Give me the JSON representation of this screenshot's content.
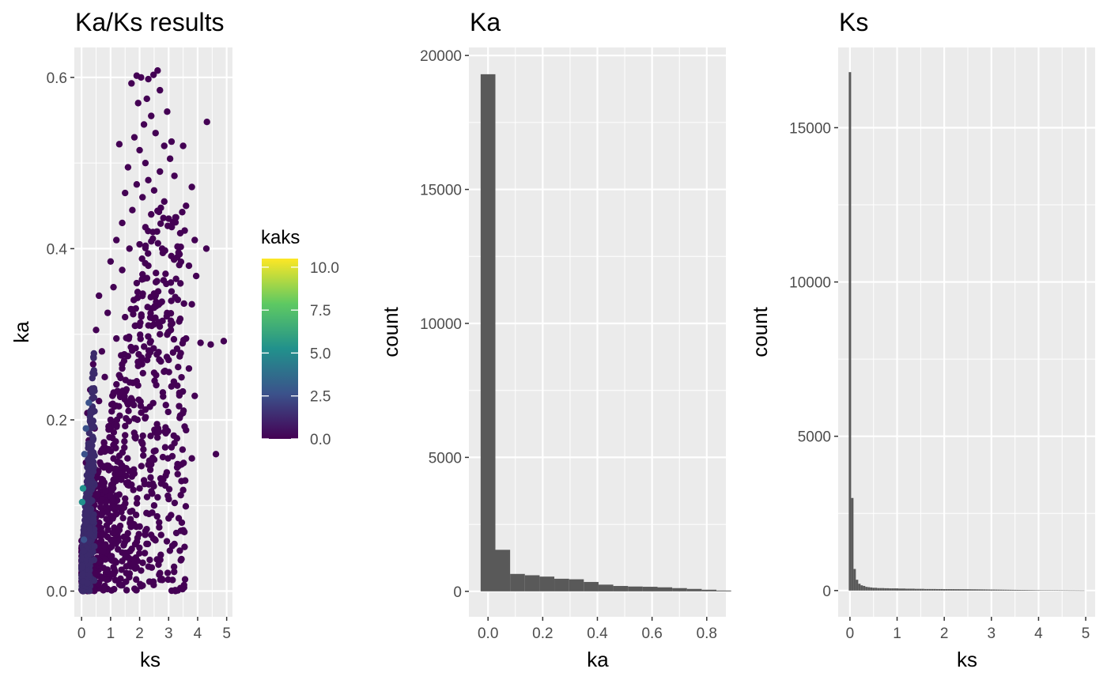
{
  "chart_data": [
    {
      "type": "scatter",
      "title": "Ka/Ks results",
      "xlabel": "ks",
      "ylabel": "ka",
      "xlim": [
        -0.25,
        5.2
      ],
      "ylim": [
        -0.03,
        0.635
      ],
      "x_ticks": [
        0,
        1,
        2,
        3,
        4,
        5
      ],
      "y_ticks": [
        0.0,
        0.2,
        0.4,
        0.6
      ],
      "y_tick_labels": [
        "0.0",
        "0.2",
        "0.4",
        "0.6"
      ],
      "grid": true,
      "color_by": "kaks",
      "legend": {
        "title": "kaks",
        "type": "colorbar",
        "palette": "viridis",
        "range": [
          0,
          10.5
        ],
        "ticks": [
          0.0,
          2.5,
          5.0,
          7.5,
          10.0
        ],
        "tick_labels": [
          "0.0",
          "2.5",
          "5.0",
          "7.5",
          "10.0"
        ],
        "colors": [
          "#440154",
          "#3b528b",
          "#21918c",
          "#5ec962",
          "#fde725"
        ]
      },
      "points": [
        [
          2.62,
          0.608
        ],
        [
          2.48,
          0.603
        ],
        [
          2.05,
          0.6
        ],
        [
          1.9,
          0.602
        ],
        [
          2.3,
          0.598
        ],
        [
          1.72,
          0.593
        ],
        [
          2.7,
          0.585
        ],
        [
          2.25,
          0.575
        ],
        [
          1.95,
          0.57
        ],
        [
          2.95,
          0.56
        ],
        [
          2.4,
          0.555
        ],
        [
          4.32,
          0.548
        ],
        [
          2.15,
          0.545
        ],
        [
          2.55,
          0.535
        ],
        [
          1.82,
          0.53
        ],
        [
          3.1,
          0.525
        ],
        [
          1.3,
          0.522
        ],
        [
          2.85,
          0.52
        ],
        [
          3.5,
          0.52
        ],
        [
          2.0,
          0.515
        ],
        [
          3.05,
          0.505
        ],
        [
          2.2,
          0.5
        ],
        [
          1.6,
          0.495
        ],
        [
          2.7,
          0.49
        ],
        [
          3.2,
          0.485
        ],
        [
          2.3,
          0.48
        ],
        [
          1.9,
          0.475
        ],
        [
          3.8,
          0.472
        ],
        [
          2.5,
          0.468
        ],
        [
          1.5,
          0.465
        ],
        [
          2.1,
          0.46
        ],
        [
          2.85,
          0.455
        ],
        [
          3.6,
          0.45
        ],
        [
          1.75,
          0.445
        ],
        [
          2.4,
          0.44
        ],
        [
          3.0,
          0.435
        ],
        [
          1.4,
          0.43
        ],
        [
          2.2,
          0.425
        ],
        [
          2.6,
          0.42
        ],
        [
          3.4,
          0.418
        ],
        [
          1.2,
          0.41
        ],
        [
          2.0,
          0.405
        ],
        [
          3.9,
          0.41
        ],
        [
          4.3,
          0.4
        ],
        [
          1.65,
          0.4
        ],
        [
          2.8,
          0.395
        ],
        [
          3.3,
          0.39
        ],
        [
          1.0,
          0.385
        ],
        [
          2.3,
          0.38
        ],
        [
          3.7,
          0.38
        ],
        [
          1.4,
          0.375
        ],
        [
          2.1,
          0.37
        ],
        [
          3.95,
          0.368
        ],
        [
          2.6,
          0.362
        ],
        [
          1.1,
          0.355
        ],
        [
          3.1,
          0.35
        ],
        [
          0.6,
          0.345
        ],
        [
          1.8,
          0.34
        ],
        [
          3.8,
          0.335
        ],
        [
          2.4,
          0.33
        ],
        [
          0.9,
          0.325
        ],
        [
          1.5,
          0.32
        ],
        [
          3.4,
          0.318
        ],
        [
          2.0,
          0.31
        ],
        [
          0.5,
          0.305
        ],
        [
          2.7,
          0.3
        ],
        [
          1.2,
          0.295
        ],
        [
          3.6,
          0.295
        ],
        [
          4.1,
          0.29
        ],
        [
          4.45,
          0.288
        ],
        [
          4.9,
          0.292
        ],
        [
          1.7,
          0.285
        ],
        [
          0.7,
          0.28
        ],
        [
          2.3,
          0.275
        ],
        [
          3.0,
          0.27
        ],
        [
          0.4,
          0.265
        ],
        [
          1.4,
          0.26
        ],
        [
          3.7,
          0.26
        ],
        [
          2.5,
          0.255
        ],
        [
          0.8,
          0.25
        ],
        [
          1.9,
          0.245
        ],
        [
          3.3,
          0.24
        ],
        [
          0.3,
          0.235
        ],
        [
          1.1,
          0.23
        ],
        [
          2.8,
          0.232
        ],
        [
          3.9,
          0.228
        ],
        [
          0.6,
          0.222
        ],
        [
          1.6,
          0.218
        ],
        [
          2.2,
          0.212
        ],
        [
          0.2,
          0.208
        ],
        [
          3.4,
          0.205
        ],
        [
          1.0,
          0.2
        ],
        [
          2.6,
          0.195
        ],
        [
          0.45,
          0.19
        ],
        [
          3.6,
          0.188
        ],
        [
          1.5,
          0.182
        ],
        [
          0.25,
          0.176
        ],
        [
          2.1,
          0.172
        ],
        [
          3.1,
          0.168
        ],
        [
          0.8,
          0.163
        ],
        [
          4.63,
          0.16
        ],
        [
          1.3,
          0.158
        ],
        [
          3.8,
          0.155
        ],
        [
          0.15,
          0.15
        ],
        [
          2.4,
          0.148
        ],
        [
          1.8,
          0.142
        ],
        [
          0.5,
          0.138
        ],
        [
          2.9,
          0.135
        ],
        [
          1.1,
          0.13
        ],
        [
          0.3,
          0.125
        ],
        [
          2.0,
          0.12
        ],
        [
          3.5,
          0.118
        ],
        [
          0.7,
          0.112
        ],
        [
          1.5,
          0.108
        ],
        [
          2.5,
          0.1
        ],
        [
          0.4,
          0.095
        ],
        [
          1.2,
          0.09
        ],
        [
          3.0,
          0.085
        ],
        [
          0.2,
          0.08
        ],
        [
          1.7,
          0.075
        ],
        [
          2.2,
          0.07
        ],
        [
          0.55,
          0.065
        ],
        [
          1.0,
          0.06
        ],
        [
          3.2,
          0.055
        ],
        [
          0.3,
          0.05
        ],
        [
          1.4,
          0.045
        ],
        [
          0.8,
          0.04
        ],
        [
          2.6,
          0.037
        ],
        [
          3.42,
          0.036
        ],
        [
          0.5,
          0.032
        ],
        [
          1.1,
          0.028
        ],
        [
          2.05,
          0.024
        ],
        [
          0.2,
          0.02
        ],
        [
          0.9,
          0.015
        ],
        [
          0.6,
          0.01
        ],
        [
          1.3,
          0.008
        ],
        [
          0.35,
          0.005
        ],
        [
          0.1,
          0.002
        ],
        [
          0.75,
          0.001
        ],
        [
          0.05,
          0.0
        ]
      ],
      "points_colored": [
        [
          0.02,
          0.104,
          5.2
        ],
        [
          0.05,
          0.12,
          4.0
        ],
        [
          0.1,
          0.16,
          3.0
        ],
        [
          0.15,
          0.19,
          2.8
        ],
        [
          0.08,
          0.06,
          3.5
        ],
        [
          0.25,
          0.22,
          2.0
        ]
      ]
    },
    {
      "type": "bar",
      "title": "Ka",
      "xlabel": "ka",
      "ylabel": "count",
      "xlim": [
        -0.07,
        0.87
      ],
      "ylim": [
        -950,
        20300
      ],
      "x_ticks": [
        0.0,
        0.2,
        0.4,
        0.6,
        0.8
      ],
      "x_tick_labels": [
        "0.0",
        "0.2",
        "0.4",
        "0.6",
        "0.8"
      ],
      "y_ticks": [
        0,
        5000,
        10000,
        15000,
        20000
      ],
      "grid": true,
      "bin_width": 0.0539,
      "first_bin_start": -0.027,
      "counts": [
        19300,
        1550,
        650,
        600,
        550,
        470,
        450,
        350,
        250,
        200,
        180,
        170,
        150,
        120,
        90,
        60,
        30
      ]
    },
    {
      "type": "bar",
      "title": "Ks",
      "xlabel": "ks",
      "ylabel": "count",
      "xlim": [
        -0.25,
        5.2
      ],
      "ylim": [
        -850,
        17600
      ],
      "x_ticks": [
        0,
        1,
        2,
        3,
        4,
        5
      ],
      "y_ticks": [
        0,
        5000,
        10000,
        15000
      ],
      "grid": true,
      "bin_width": 0.05,
      "first_bin_start": -0.025,
      "counts": [
        16800,
        3000,
        700,
        350,
        220,
        170,
        150,
        120,
        110,
        100,
        90,
        90,
        80,
        80,
        80,
        75,
        75,
        70,
        70,
        70,
        70,
        65,
        65,
        65,
        60,
        60,
        60,
        60,
        55,
        55,
        55,
        55,
        50,
        50,
        50,
        50,
        50,
        48,
        48,
        48,
        46,
        46,
        46,
        45,
        45,
        44,
        44,
        43,
        43,
        42,
        42,
        41,
        40,
        40,
        39,
        38,
        37,
        36,
        35,
        34,
        33,
        32,
        31,
        30,
        29,
        28,
        27,
        26,
        25,
        24,
        23,
        22,
        21,
        20,
        20,
        19,
        18,
        17,
        16,
        15,
        14,
        13,
        12,
        11,
        10,
        10,
        9,
        8,
        8,
        7,
        7,
        6,
        6,
        5,
        5,
        5,
        4,
        4,
        3,
        3
      ]
    }
  ]
}
